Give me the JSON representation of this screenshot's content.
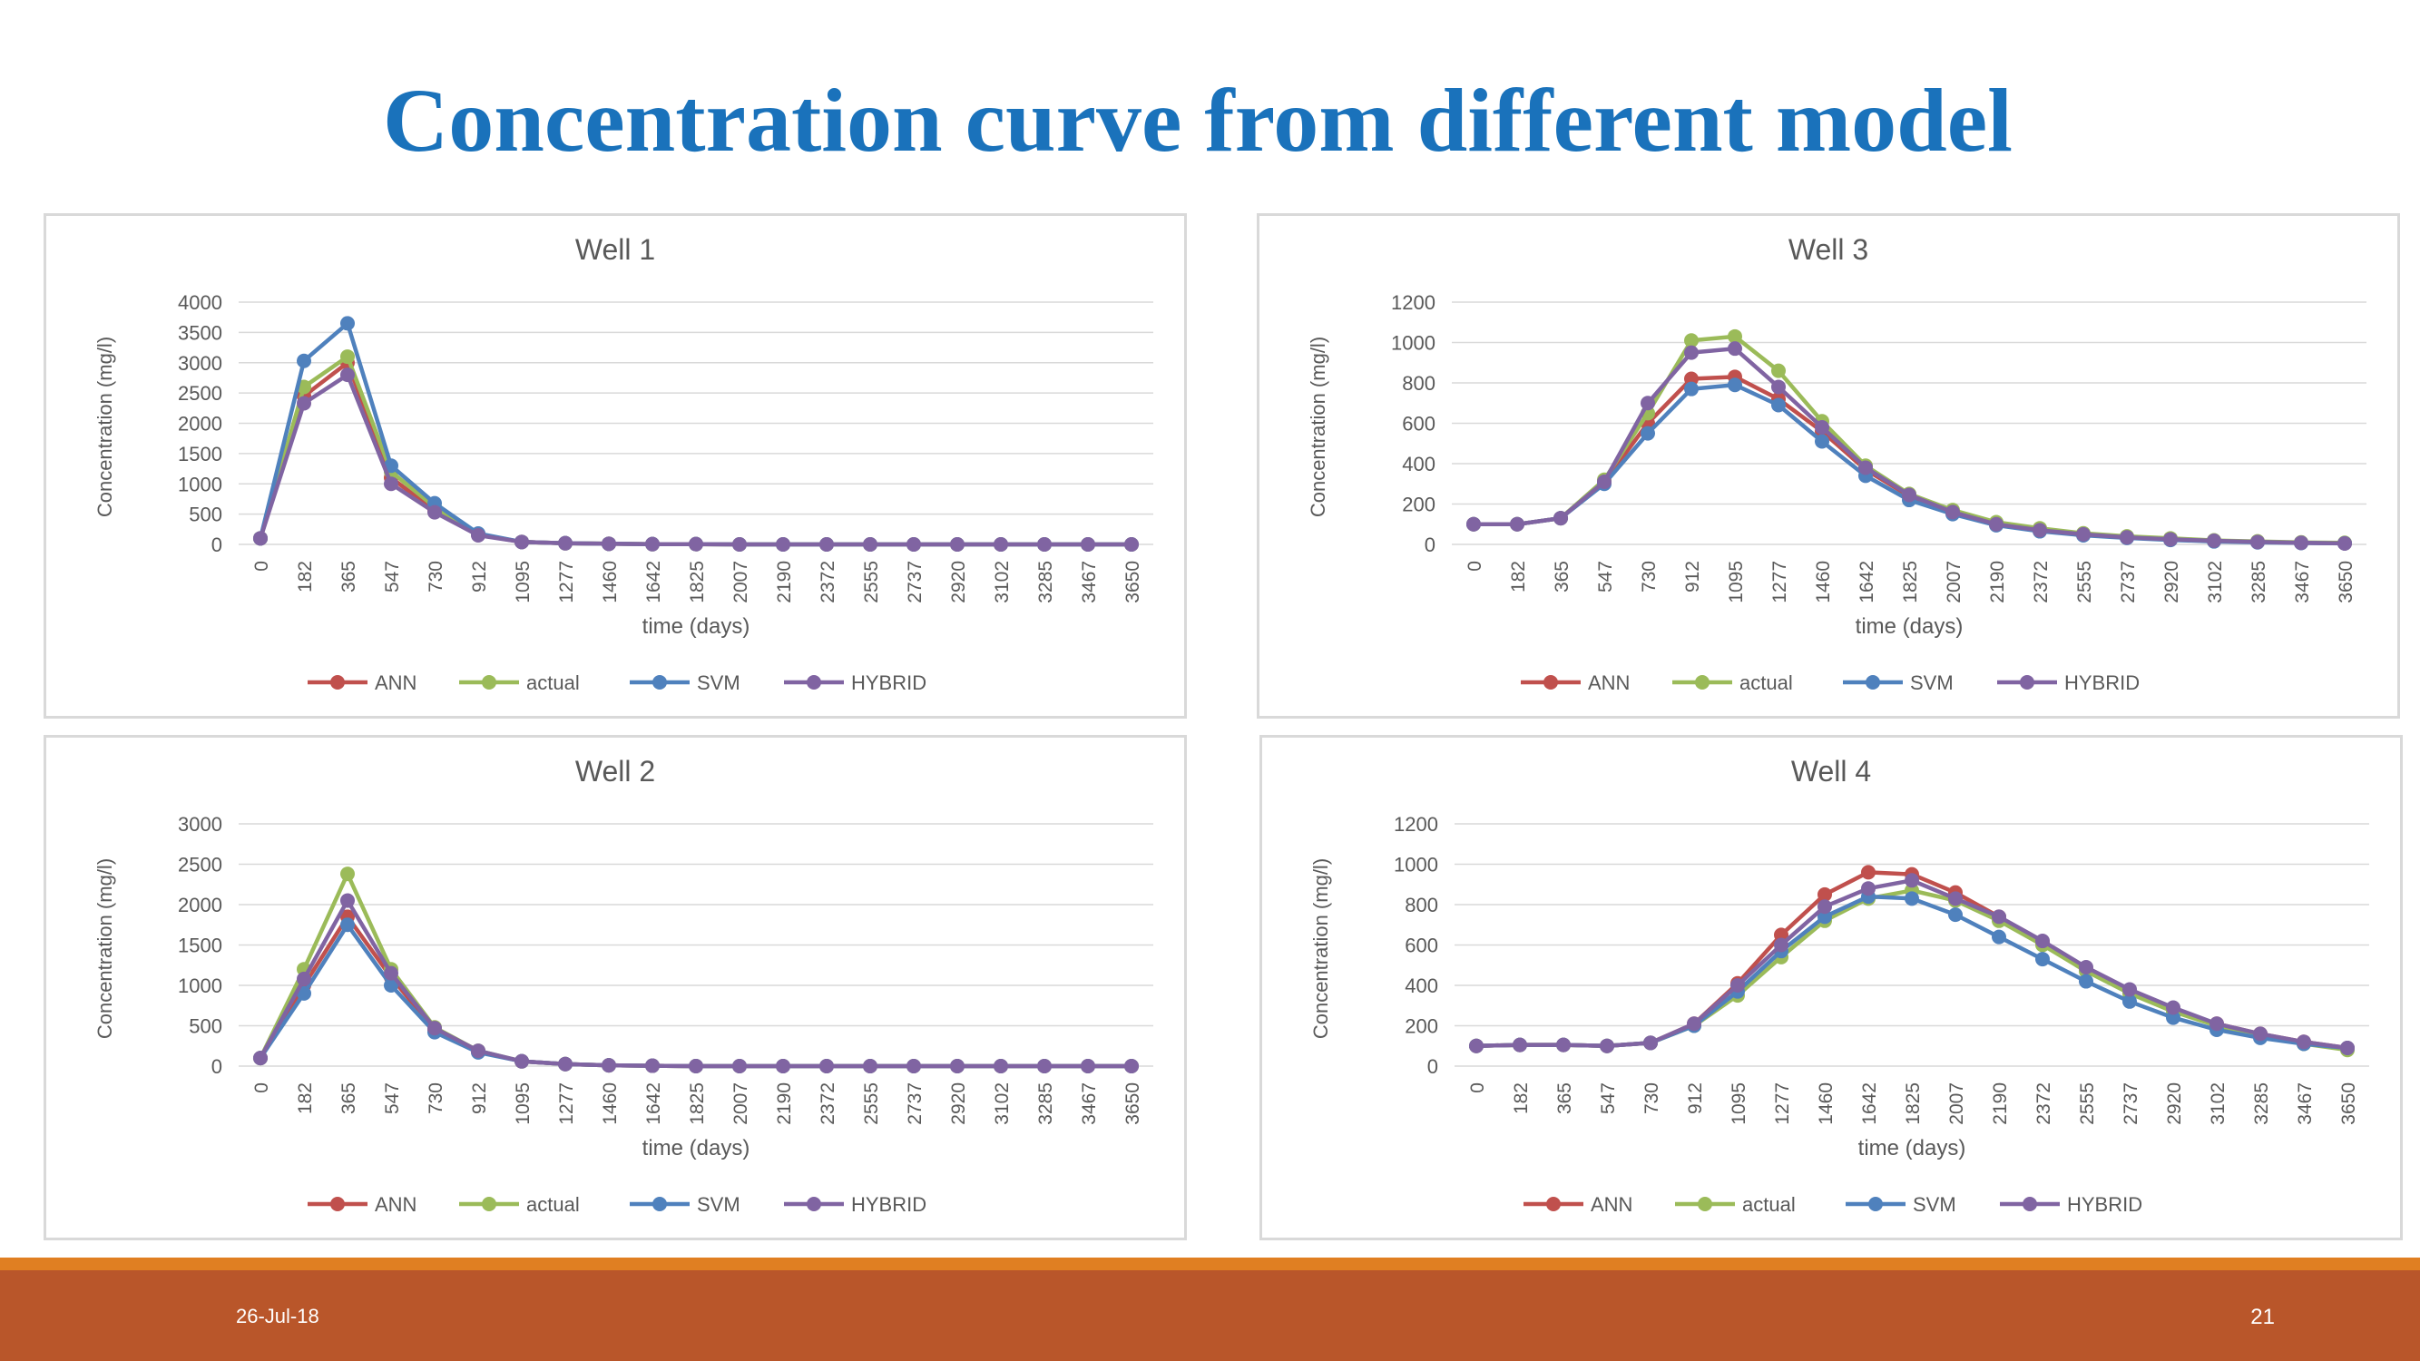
{
  "slide": {
    "title": "Concentration curve from different model",
    "date": "26-Jul-18",
    "page": "21"
  },
  "colors": {
    "ANN": "#c0504d",
    "actual": "#9bbb59",
    "SVM": "#4f81bd",
    "HYBRID": "#8064a2"
  },
  "chart_data": [
    {
      "type": "line",
      "title": "Well 1",
      "xlabel": "time (days)",
      "ylabel": "Concentration (mg/l)",
      "ylim": [
        0,
        4000
      ],
      "yticks": [
        0,
        500,
        1000,
        1500,
        2000,
        2500,
        3000,
        3500,
        4000
      ],
      "legend": "bottom",
      "grid": true,
      "categories": [
        "0",
        "182",
        "365",
        "547",
        "730",
        "912",
        "1095",
        "1277",
        "1460",
        "1642",
        "1825",
        "2007",
        "2190",
        "2372",
        "2555",
        "2737",
        "2920",
        "3102",
        "3285",
        "3467",
        "3650"
      ],
      "series": [
        {
          "name": "ANN",
          "values": [
            100,
            2450,
            3000,
            1100,
            560,
            160,
            40,
            20,
            10,
            5,
            5,
            0,
            0,
            0,
            0,
            0,
            0,
            0,
            0,
            0,
            0
          ]
        },
        {
          "name": "actual",
          "values": [
            100,
            2600,
            3100,
            1200,
            620,
            170,
            40,
            20,
            10,
            5,
            5,
            0,
            0,
            0,
            0,
            0,
            0,
            0,
            0,
            0,
            0
          ]
        },
        {
          "name": "SVM",
          "values": [
            100,
            3030,
            3650,
            1300,
            680,
            180,
            40,
            20,
            10,
            5,
            5,
            0,
            0,
            0,
            0,
            0,
            0,
            0,
            0,
            0,
            0
          ]
        },
        {
          "name": "HYBRID",
          "values": [
            100,
            2330,
            2800,
            1000,
            530,
            150,
            40,
            20,
            10,
            5,
            5,
            0,
            0,
            0,
            0,
            0,
            0,
            0,
            0,
            0,
            0
          ]
        }
      ]
    },
    {
      "type": "line",
      "title": "Well 3",
      "xlabel": "time (days)",
      "ylabel": "Concentration (mg/l)",
      "ylim": [
        0,
        1200
      ],
      "yticks": [
        0,
        200,
        400,
        600,
        800,
        1000,
        1200
      ],
      "legend": "bottom",
      "grid": true,
      "categories": [
        "0",
        "182",
        "365",
        "547",
        "730",
        "912",
        "1095",
        "1277",
        "1460",
        "1642",
        "1825",
        "2007",
        "2190",
        "2372",
        "2555",
        "2737",
        "2920",
        "3102",
        "3285",
        "3467",
        "3650"
      ],
      "series": [
        {
          "name": "ANN",
          "values": [
            100,
            100,
            130,
            310,
            600,
            820,
            830,
            720,
            560,
            370,
            240,
            160,
            100,
            70,
            50,
            35,
            25,
            18,
            12,
            8,
            5
          ]
        },
        {
          "name": "actual",
          "values": [
            100,
            100,
            130,
            320,
            650,
            1010,
            1030,
            860,
            610,
            390,
            250,
            170,
            110,
            80,
            55,
            40,
            30,
            20,
            15,
            10,
            8
          ]
        },
        {
          "name": "SVM",
          "values": [
            100,
            100,
            130,
            300,
            550,
            770,
            790,
            690,
            510,
            340,
            220,
            150,
            95,
            65,
            45,
            32,
            22,
            15,
            10,
            7,
            5
          ]
        },
        {
          "name": "HYBRID",
          "values": [
            100,
            100,
            130,
            310,
            700,
            950,
            970,
            780,
            580,
            380,
            245,
            160,
            100,
            70,
            50,
            35,
            25,
            18,
            12,
            8,
            5
          ]
        }
      ]
    },
    {
      "type": "line",
      "title": "Well 2",
      "xlabel": "time (days)",
      "ylabel": "Concentration (mg/l)",
      "ylim": [
        0,
        3000
      ],
      "yticks": [
        0,
        500,
        1000,
        1500,
        2000,
        2500,
        3000
      ],
      "legend": "bottom",
      "grid": true,
      "categories": [
        "0",
        "182",
        "365",
        "547",
        "730",
        "912",
        "1095",
        "1277",
        "1460",
        "1642",
        "1825",
        "2007",
        "2190",
        "2372",
        "2555",
        "2737",
        "2920",
        "3102",
        "3285",
        "3467",
        "3650"
      ],
      "series": [
        {
          "name": "ANN",
          "values": [
            100,
            1000,
            1850,
            1100,
            450,
            180,
            60,
            25,
            10,
            5,
            0,
            0,
            0,
            0,
            0,
            0,
            0,
            0,
            0,
            0,
            0
          ]
        },
        {
          "name": "actual",
          "values": [
            100,
            1200,
            2380,
            1200,
            480,
            190,
            60,
            25,
            10,
            5,
            0,
            0,
            0,
            0,
            0,
            0,
            0,
            0,
            0,
            0,
            0
          ]
        },
        {
          "name": "SVM",
          "values": [
            100,
            900,
            1750,
            1000,
            420,
            170,
            60,
            25,
            10,
            5,
            0,
            0,
            0,
            0,
            0,
            0,
            0,
            0,
            0,
            0,
            0
          ]
        },
        {
          "name": "HYBRID",
          "values": [
            100,
            1080,
            2050,
            1150,
            470,
            190,
            60,
            25,
            10,
            5,
            0,
            0,
            0,
            0,
            0,
            0,
            0,
            0,
            0,
            0,
            0
          ]
        }
      ]
    },
    {
      "type": "line",
      "title": "Well 4",
      "xlabel": "time (days)",
      "ylabel": "Concentration (mg/l)",
      "ylim": [
        0,
        1200
      ],
      "yticks": [
        0,
        200,
        400,
        600,
        800,
        1000,
        1200
      ],
      "legend": "bottom",
      "grid": true,
      "categories": [
        "0",
        "182",
        "365",
        "547",
        "730",
        "912",
        "1095",
        "1277",
        "1460",
        "1642",
        "1825",
        "2007",
        "2190",
        "2372",
        "2555",
        "2737",
        "2920",
        "3102",
        "3285",
        "3467",
        "3650"
      ],
      "series": [
        {
          "name": "ANN",
          "values": [
            100,
            105,
            105,
            100,
            115,
            210,
            410,
            650,
            850,
            960,
            950,
            860,
            740,
            610,
            480,
            370,
            280,
            210,
            160,
            120,
            90
          ]
        },
        {
          "name": "actual",
          "values": [
            100,
            105,
            105,
            100,
            115,
            200,
            350,
            540,
            720,
            830,
            870,
            820,
            720,
            600,
            470,
            360,
            270,
            200,
            150,
            110,
            80
          ]
        },
        {
          "name": "SVM",
          "values": [
            100,
            105,
            105,
            100,
            115,
            200,
            370,
            570,
            740,
            840,
            830,
            750,
            640,
            530,
            420,
            320,
            240,
            180,
            140,
            110,
            90
          ]
        },
        {
          "name": "HYBRID",
          "values": [
            100,
            105,
            105,
            100,
            115,
            210,
            400,
            600,
            790,
            880,
            920,
            830,
            740,
            620,
            490,
            380,
            290,
            210,
            160,
            120,
            90
          ]
        }
      ]
    }
  ]
}
